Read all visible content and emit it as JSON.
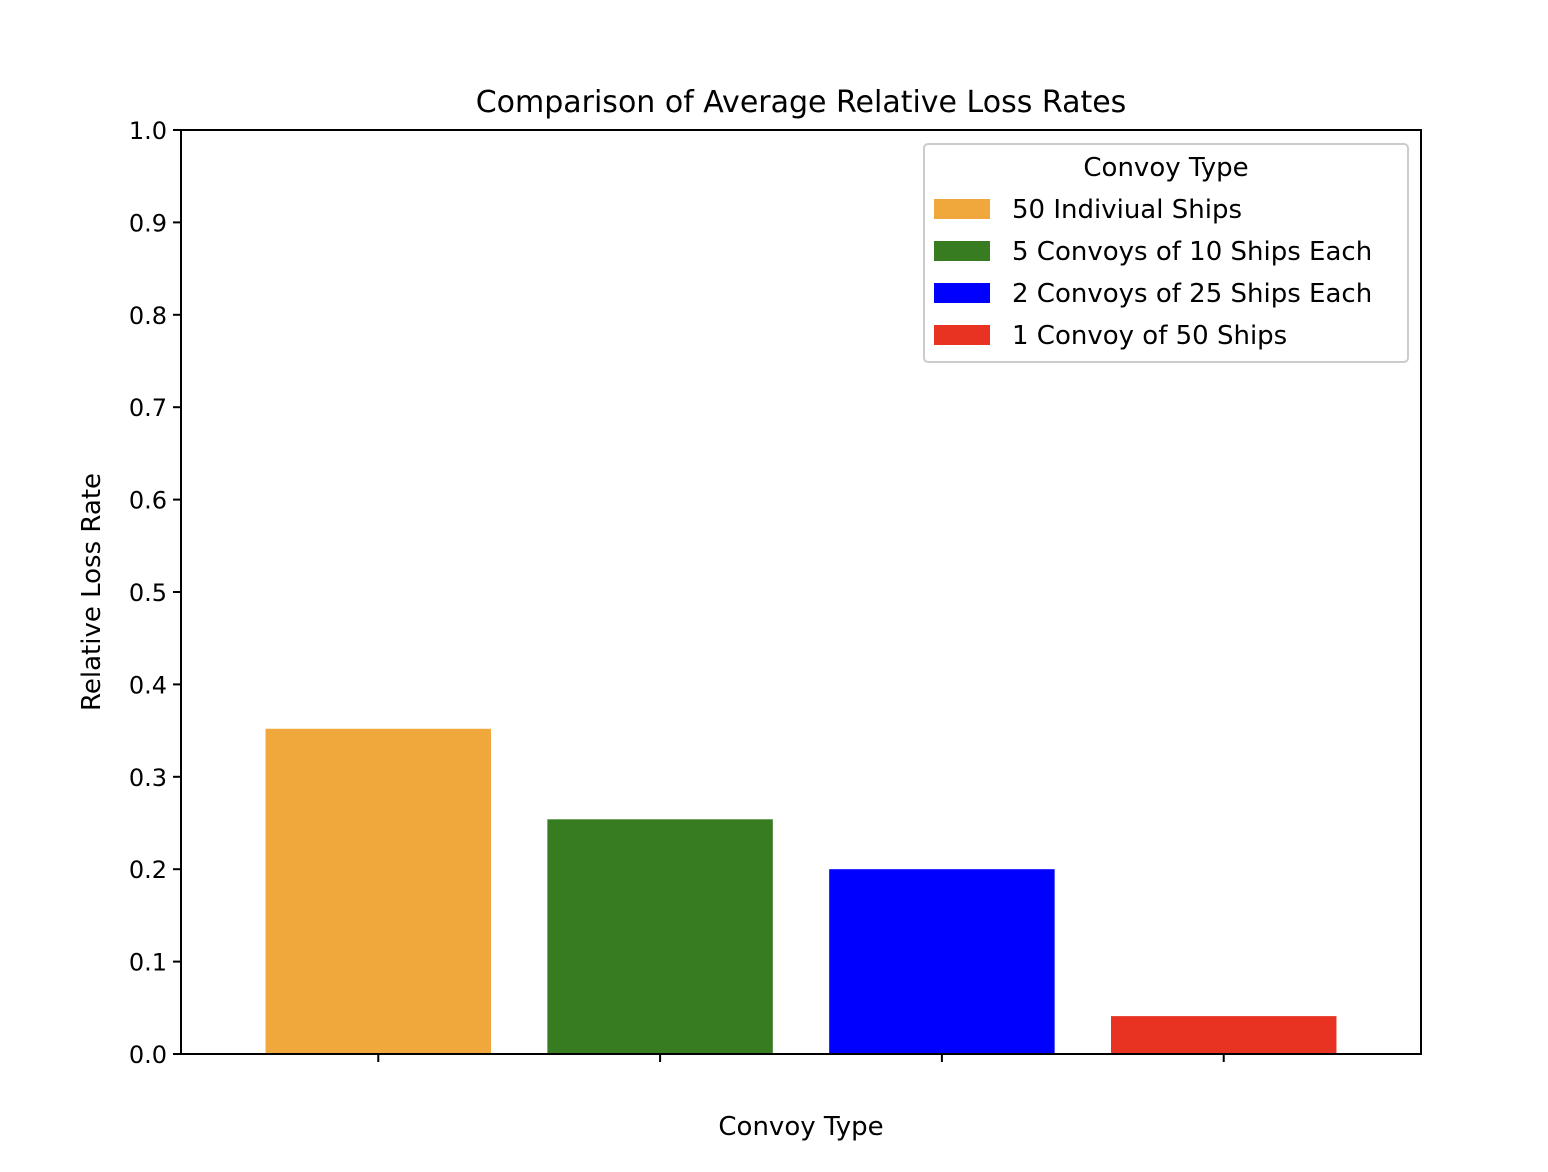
{
  "chart_data": {
    "type": "bar",
    "title": "Comparison of Average Relative Loss Rates",
    "xlabel": "Convoy Type",
    "ylabel": "Relative Loss Rate",
    "ylim": [
      0,
      1.0
    ],
    "yticks": [
      "0.0",
      "0.1",
      "0.2",
      "0.3",
      "0.4",
      "0.5",
      "0.6",
      "0.7",
      "0.8",
      "0.9",
      "1.0"
    ],
    "categories": [
      "50 Indiviual Ships",
      "5 Convoys of 10 Ships Each",
      "2 Convoys of 25 Ships Each",
      "1 Convoy of 50 Ships"
    ],
    "values": [
      0.352,
      0.254,
      0.2,
      0.041
    ],
    "colors": [
      "#f0a83c",
      "#377c21",
      "#0000ff",
      "#e83323"
    ],
    "grid": false,
    "legend": {
      "title": "Convoy Type",
      "placement": "top-right"
    }
  }
}
